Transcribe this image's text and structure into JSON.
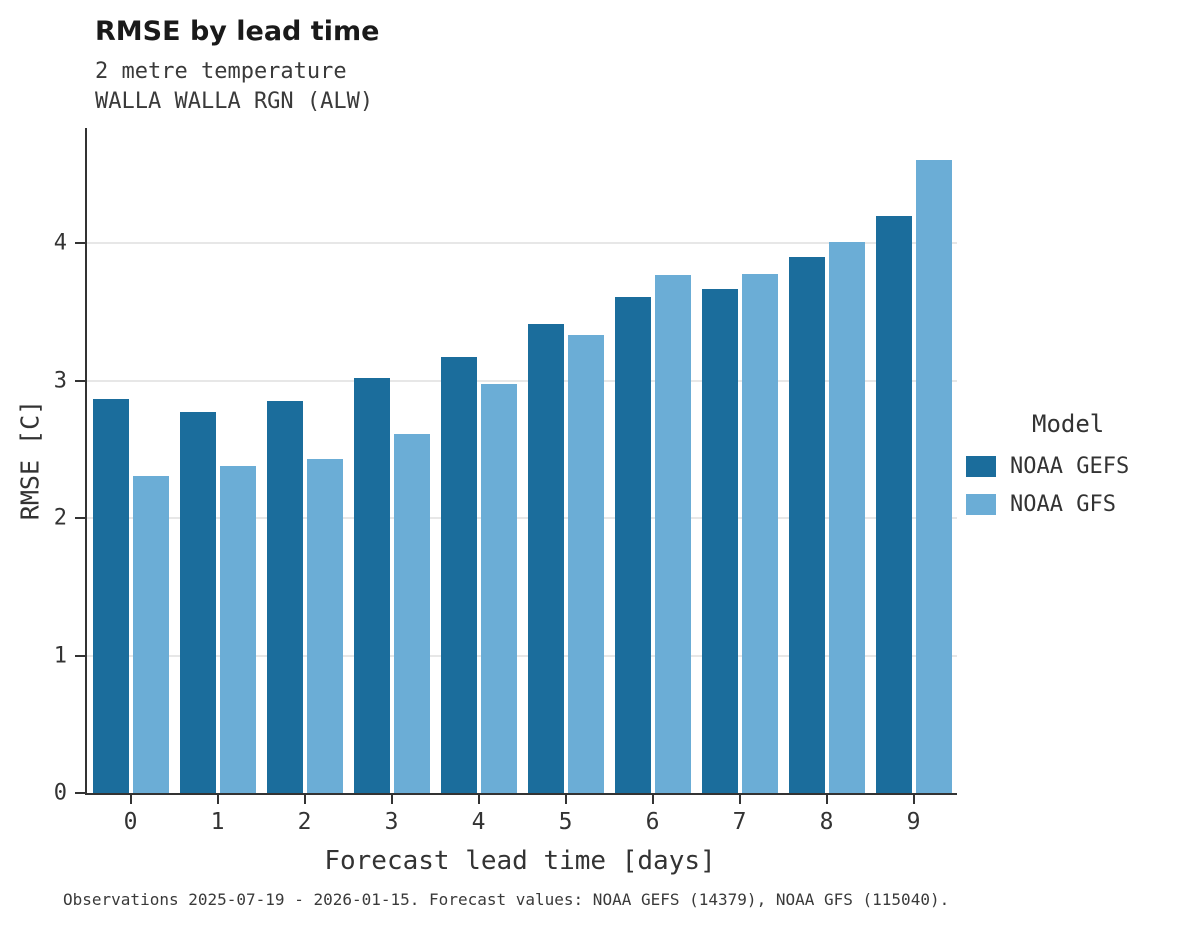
{
  "header": {
    "title": "RMSE by lead time",
    "subtitle1": "2 metre temperature",
    "subtitle2": "WALLA WALLA RGN (ALW)"
  },
  "legend": {
    "title": "Model",
    "entries": [
      {
        "label": "NOAA GEFS",
        "color": "#1b6d9c"
      },
      {
        "label": "NOAA GFS",
        "color": "#6badd6"
      }
    ]
  },
  "footer": {
    "caption": "Observations 2025-07-19 - 2026-01-15. Forecast values: NOAA GEFS (14379), NOAA GFS (115040)."
  },
  "chart_data": {
    "type": "bar",
    "title": "RMSE by lead time",
    "subtitle": "2 metre temperature, WALLA WALLA RGN (ALW)",
    "xlabel": "Forecast lead time [days]",
    "ylabel": "RMSE [C]",
    "categories": [
      0,
      1,
      2,
      3,
      4,
      5,
      6,
      7,
      8,
      9
    ],
    "series": [
      {
        "name": "NOAA GEFS",
        "color": "#1b6d9c",
        "values": [
          2.87,
          2.77,
          2.85,
          3.02,
          3.17,
          3.41,
          3.61,
          3.67,
          3.9,
          4.2
        ]
      },
      {
        "name": "NOAA GFS",
        "color": "#6badd6",
        "values": [
          2.31,
          2.38,
          2.43,
          2.61,
          2.98,
          3.33,
          3.77,
          3.78,
          4.01,
          4.61
        ]
      }
    ],
    "ylim": [
      0,
      4.84
    ],
    "yticks": [
      0,
      1,
      2,
      3,
      4
    ],
    "grid": true,
    "legend_position": "right"
  }
}
